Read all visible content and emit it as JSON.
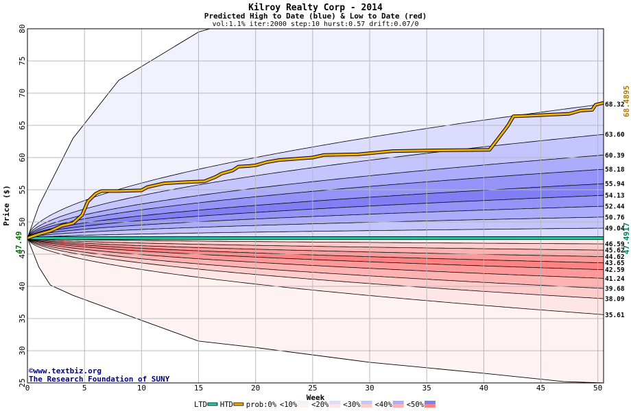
{
  "chart_data": {
    "type": "area",
    "title": "Kilroy Realty Corp - 2014",
    "subtitle": "Predicted High to Date (blue) &  Low to Date (red)",
    "params": "vol:1.1% iter:2000 step:10 hurst:0.57 drift:0.07/0",
    "xlabel": "Week",
    "ylabel": "Price ($)",
    "xlim": [
      0,
      50.5
    ],
    "ylim": [
      25,
      80
    ],
    "x_ticks": [
      0,
      5,
      10,
      15,
      20,
      25,
      30,
      35,
      40,
      45,
      50
    ],
    "y_ticks": [
      25,
      30,
      35,
      40,
      45,
      50,
      55,
      60,
      65,
      70,
      75,
      80
    ],
    "grid": true,
    "start_price": 47.49,
    "start_label": "47.49",
    "ltd_value_label": "47.4917",
    "htd_value_label": "68.4895",
    "colors": {
      "background": "#ffffff",
      "plot_area": "#ffffff",
      "grid": "#b8b8b8",
      "title": "#000000",
      "htd_line": "#f0b000",
      "ltd_line": "#20d0a8",
      "start_label": "#007000",
      "ltd_label": "#008060",
      "htd_label": "#b07800",
      "watermark": "#000080"
    },
    "upper_bands": [
      {
        "end": 68.32,
        "label": "68.32"
      },
      {
        "end": 63.6,
        "label": "63.60"
      },
      {
        "end": 60.39,
        "label": "60.39"
      },
      {
        "end": 58.18,
        "label": "58.18"
      },
      {
        "end": 55.94,
        "label": "55.94"
      },
      {
        "end": 54.13,
        "label": "54.13"
      },
      {
        "end": 52.44,
        "label": "52.44"
      },
      {
        "end": 50.76,
        "label": "50.76"
      },
      {
        "end": 49.04,
        "label": "49.04"
      }
    ],
    "upper_fills": [
      "#f2f2ff",
      "#dcdcff",
      "#c4c4ff",
      "#acacfc",
      "#9494f8",
      "#8080f4",
      "#9494f8",
      "#acacfc",
      "#c4c4ff",
      "#dcdcff"
    ],
    "lower_bands": [
      {
        "end": 46.59,
        "label": "46.59"
      },
      {
        "end": 45.62,
        "label": "45.62"
      },
      {
        "end": 44.62,
        "label": "44.62"
      },
      {
        "end": 43.65,
        "label": "43.65"
      },
      {
        "end": 42.59,
        "label": "42.59"
      },
      {
        "end": 41.24,
        "label": "41.24"
      },
      {
        "end": 39.68,
        "label": "39.68"
      },
      {
        "end": 38.09,
        "label": "38.09"
      },
      {
        "end": 35.61,
        "label": "35.61"
      }
    ],
    "lower_fills": [
      "#ffe6e6",
      "#ffcccc",
      "#ffb2b2",
      "#ff9898",
      "#ff8282",
      "#ff9898",
      "#ffb2b2",
      "#ffcccc",
      "#ffe6e6",
      "#fff2f2"
    ],
    "outer_upper": [
      [
        0,
        47.49
      ],
      [
        1,
        52.5
      ],
      [
        4,
        63
      ],
      [
        8,
        72
      ],
      [
        15,
        79.5
      ],
      [
        16,
        80
      ]
    ],
    "outer_lower": [
      [
        0,
        47.49
      ],
      [
        1,
        43
      ],
      [
        2,
        40.2
      ],
      [
        4,
        38.6
      ],
      [
        8,
        36
      ],
      [
        15,
        31.5
      ],
      [
        20,
        30.5
      ],
      [
        30,
        28.2
      ],
      [
        40,
        26.5
      ],
      [
        47,
        25.2
      ],
      [
        50.5,
        25
      ]
    ],
    "htd_series": [
      [
        0,
        47.49
      ],
      [
        1,
        48.1
      ],
      [
        2,
        48.6
      ],
      [
        3,
        49.4
      ],
      [
        4,
        49.8
      ],
      [
        4.8,
        51.1
      ],
      [
        5.3,
        53.2
      ],
      [
        6,
        54.4
      ],
      [
        6.5,
        54.8
      ],
      [
        8,
        54.8
      ],
      [
        10,
        54.9
      ],
      [
        10.5,
        55.4
      ],
      [
        12,
        56.0
      ],
      [
        14,
        56.2
      ],
      [
        15.5,
        56.3
      ],
      [
        16.5,
        57.0
      ],
      [
        17,
        57.5
      ],
      [
        18,
        58.0
      ],
      [
        18.5,
        58.6
      ],
      [
        19.5,
        58.7
      ],
      [
        20,
        58.8
      ],
      [
        21,
        59.3
      ],
      [
        22,
        59.6
      ],
      [
        25,
        60.0
      ],
      [
        26,
        60.4
      ],
      [
        29,
        60.5
      ],
      [
        32,
        61.0
      ],
      [
        35,
        61.1
      ],
      [
        40.5,
        61.2
      ],
      [
        41.2,
        62.8
      ],
      [
        42.1,
        64.9
      ],
      [
        42.6,
        66.4
      ],
      [
        44,
        66.5
      ],
      [
        47.5,
        66.8
      ],
      [
        48.5,
        67.3
      ],
      [
        49.5,
        67.4
      ],
      [
        49.8,
        68.2
      ],
      [
        50.5,
        68.49
      ]
    ],
    "ltd_value": 47.4917
  },
  "watermark": {
    "line1": "©www.textbiz.org",
    "line2": "The Research Foundation of SUNY"
  },
  "legend": [
    {
      "label": "LTD",
      "kind": "line",
      "color": "#20d0a8"
    },
    {
      "label": "HTD",
      "kind": "line",
      "color": "#f0b000"
    },
    {
      "label": "prob:0%",
      "kind": "text"
    },
    {
      "label": "<10%",
      "kind": "box",
      "fill": "#f2f2ff",
      "fill2": "#fff2f2"
    },
    {
      "label": "<20%",
      "kind": "box",
      "fill": "#dcdcff",
      "fill2": "#ffe6e6"
    },
    {
      "label": "<30%",
      "kind": "box",
      "fill": "#c4c4ff",
      "fill2": "#ffcccc"
    },
    {
      "label": "<40%",
      "kind": "box",
      "fill": "#acacfc",
      "fill2": "#ffb2b2"
    },
    {
      "label": "<50%",
      "kind": "box",
      "fill": "#8080f4",
      "fill2": "#ff8282"
    }
  ]
}
